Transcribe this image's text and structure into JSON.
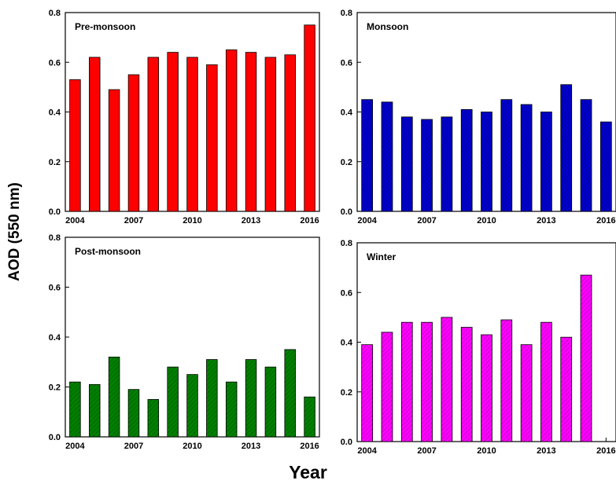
{
  "figure": {
    "shared_ylabel": "AOD (550 nm)",
    "shared_xlabel": "Year"
  },
  "chart_data": [
    {
      "type": "bar",
      "title": "Pre-monsoon",
      "color": "#ff0000",
      "categories": [
        2004,
        2005,
        2006,
        2007,
        2008,
        2009,
        2010,
        2011,
        2012,
        2013,
        2014,
        2015,
        2016
      ],
      "values": [
        0.53,
        0.62,
        0.49,
        0.55,
        0.62,
        0.64,
        0.62,
        0.59,
        0.65,
        0.64,
        0.62,
        0.63,
        0.75
      ],
      "xticks": [
        2004,
        2007,
        2010,
        2013,
        2016
      ],
      "yticks": [
        0.0,
        0.2,
        0.4,
        0.6,
        0.8
      ],
      "ylim": [
        0,
        0.8
      ],
      "xlim": [
        2003.5,
        2016.5
      ],
      "hatched": false
    },
    {
      "type": "bar",
      "title": "Monsoon",
      "color": "#0000cc",
      "categories": [
        2004,
        2005,
        2006,
        2007,
        2008,
        2009,
        2010,
        2011,
        2012,
        2013,
        2014,
        2015,
        2016
      ],
      "values": [
        0.45,
        0.44,
        0.38,
        0.37,
        0.38,
        0.41,
        0.4,
        0.45,
        0.43,
        0.4,
        0.51,
        0.45,
        0.36
      ],
      "xticks": [
        2004,
        2007,
        2010,
        2013,
        2016
      ],
      "yticks": [
        0.0,
        0.2,
        0.4,
        0.6,
        0.8
      ],
      "ylim": [
        0,
        0.8
      ],
      "xlim": [
        2003.5,
        2016.5
      ],
      "hatched": true
    },
    {
      "type": "bar",
      "title": "Post-monsoon",
      "color": "#008000",
      "categories": [
        2004,
        2005,
        2006,
        2007,
        2008,
        2009,
        2010,
        2011,
        2012,
        2013,
        2014,
        2015,
        2016
      ],
      "values": [
        0.22,
        0.21,
        0.32,
        0.19,
        0.15,
        0.28,
        0.25,
        0.31,
        0.22,
        0.31,
        0.28,
        0.35,
        0.16
      ],
      "xticks": [
        2004,
        2007,
        2010,
        2013,
        2016
      ],
      "yticks": [
        0.0,
        0.2,
        0.4,
        0.6,
        0.8
      ],
      "ylim": [
        0,
        0.8
      ],
      "xlim": [
        2003.5,
        2016.5
      ],
      "hatched": true
    },
    {
      "type": "bar",
      "title": "Winter",
      "color": "#ff00ff",
      "categories": [
        2004,
        2005,
        2006,
        2007,
        2008,
        2009,
        2010,
        2011,
        2012,
        2013,
        2014,
        2015
      ],
      "values": [
        0.39,
        0.44,
        0.48,
        0.48,
        0.5,
        0.46,
        0.43,
        0.49,
        0.39,
        0.48,
        0.42,
        0.67
      ],
      "xticks": [
        2004,
        2007,
        2010,
        2013,
        2016
      ],
      "yticks": [
        0.0,
        0.2,
        0.4,
        0.6,
        0.8
      ],
      "ylim": [
        0,
        0.8
      ],
      "xlim": [
        2003.5,
        2016.5
      ],
      "hatched": true
    }
  ]
}
